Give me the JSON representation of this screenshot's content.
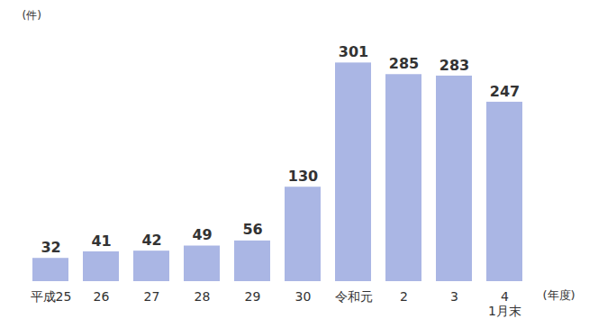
{
  "chart_data": {
    "type": "bar",
    "y_label": "(件)",
    "x_label": "(年度)",
    "categories": [
      "平成25",
      "26",
      "27",
      "28",
      "29",
      "30",
      "令和元",
      "2",
      "3",
      "4\n1月末"
    ],
    "values": [
      32,
      41,
      42,
      49,
      56,
      130,
      301,
      285,
      283,
      247
    ],
    "color": "#aab6e4",
    "ylim": [
      0,
      330
    ],
    "data_labels": true,
    "tick_labels": "x",
    "grid": false
  }
}
